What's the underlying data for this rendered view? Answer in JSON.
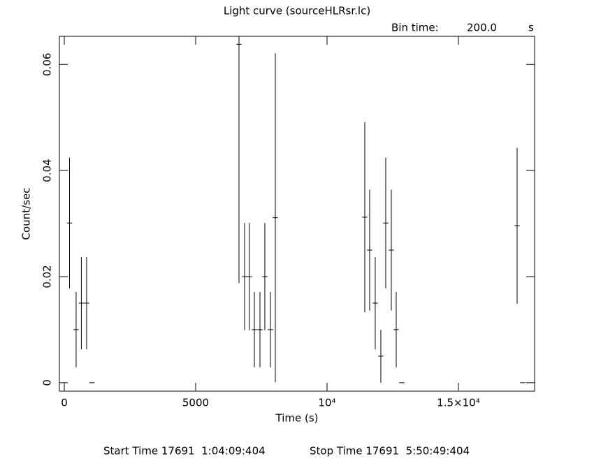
{
  "chart_data": {
    "type": "errorbar",
    "title": "Light curve (sourceHLRsr.lc)",
    "bin_time_label": "Bin time:",
    "bin_time": {
      "value": 200,
      "label": "200.0"
    },
    "bin_time_unit": "s",
    "x_label": "Time (s)",
    "y_label": "Count/sec",
    "start_time": "Start Time 17691  1:04:09:404",
    "stop_time": "Stop Time 17691  5:50:49:404",
    "xlim": [
      -186,
      17900
    ],
    "ylim": [
      -0.0016,
      0.0653
    ],
    "xticks": [
      0,
      5000,
      {
        "value": 10000,
        "label": "10⁴"
      },
      {
        "value": 15000,
        "label": "1.5×10⁴"
      }
    ],
    "yticks": [
      0,
      0.02,
      0.04,
      0.06
    ],
    "color": "#000000",
    "series": [
      {
        "x": [
          200,
          450,
          650,
          850,
          1050,
          6649,
          6862,
          7048,
          7234,
          7447,
          7633,
          7846,
          8032,
          11436,
          11622,
          11835,
          12048,
          12234,
          12447,
          12633,
          12846,
          17234,
          17447
        ],
        "values": [
          0.0301,
          0.01,
          0.015,
          0.015,
          0,
          0.0638,
          0.02,
          0.02,
          0.01,
          0.01,
          0.02,
          0.01,
          0.0311,
          0.0312,
          0.025,
          0.015,
          0.005,
          0.0301,
          0.025,
          0.01,
          0,
          0.0296,
          0
        ],
        "errors": [
          0.0123,
          0.0071,
          0.0087,
          0.0087,
          0,
          0.045,
          0.0101,
          0.0101,
          0.0071,
          0.0071,
          0.0101,
          0.0071,
          0.031,
          0.0179,
          0.0114,
          0.0087,
          0.005,
          0.0123,
          0.0114,
          0.0071,
          0,
          0.0147,
          0
        ]
      }
    ]
  }
}
